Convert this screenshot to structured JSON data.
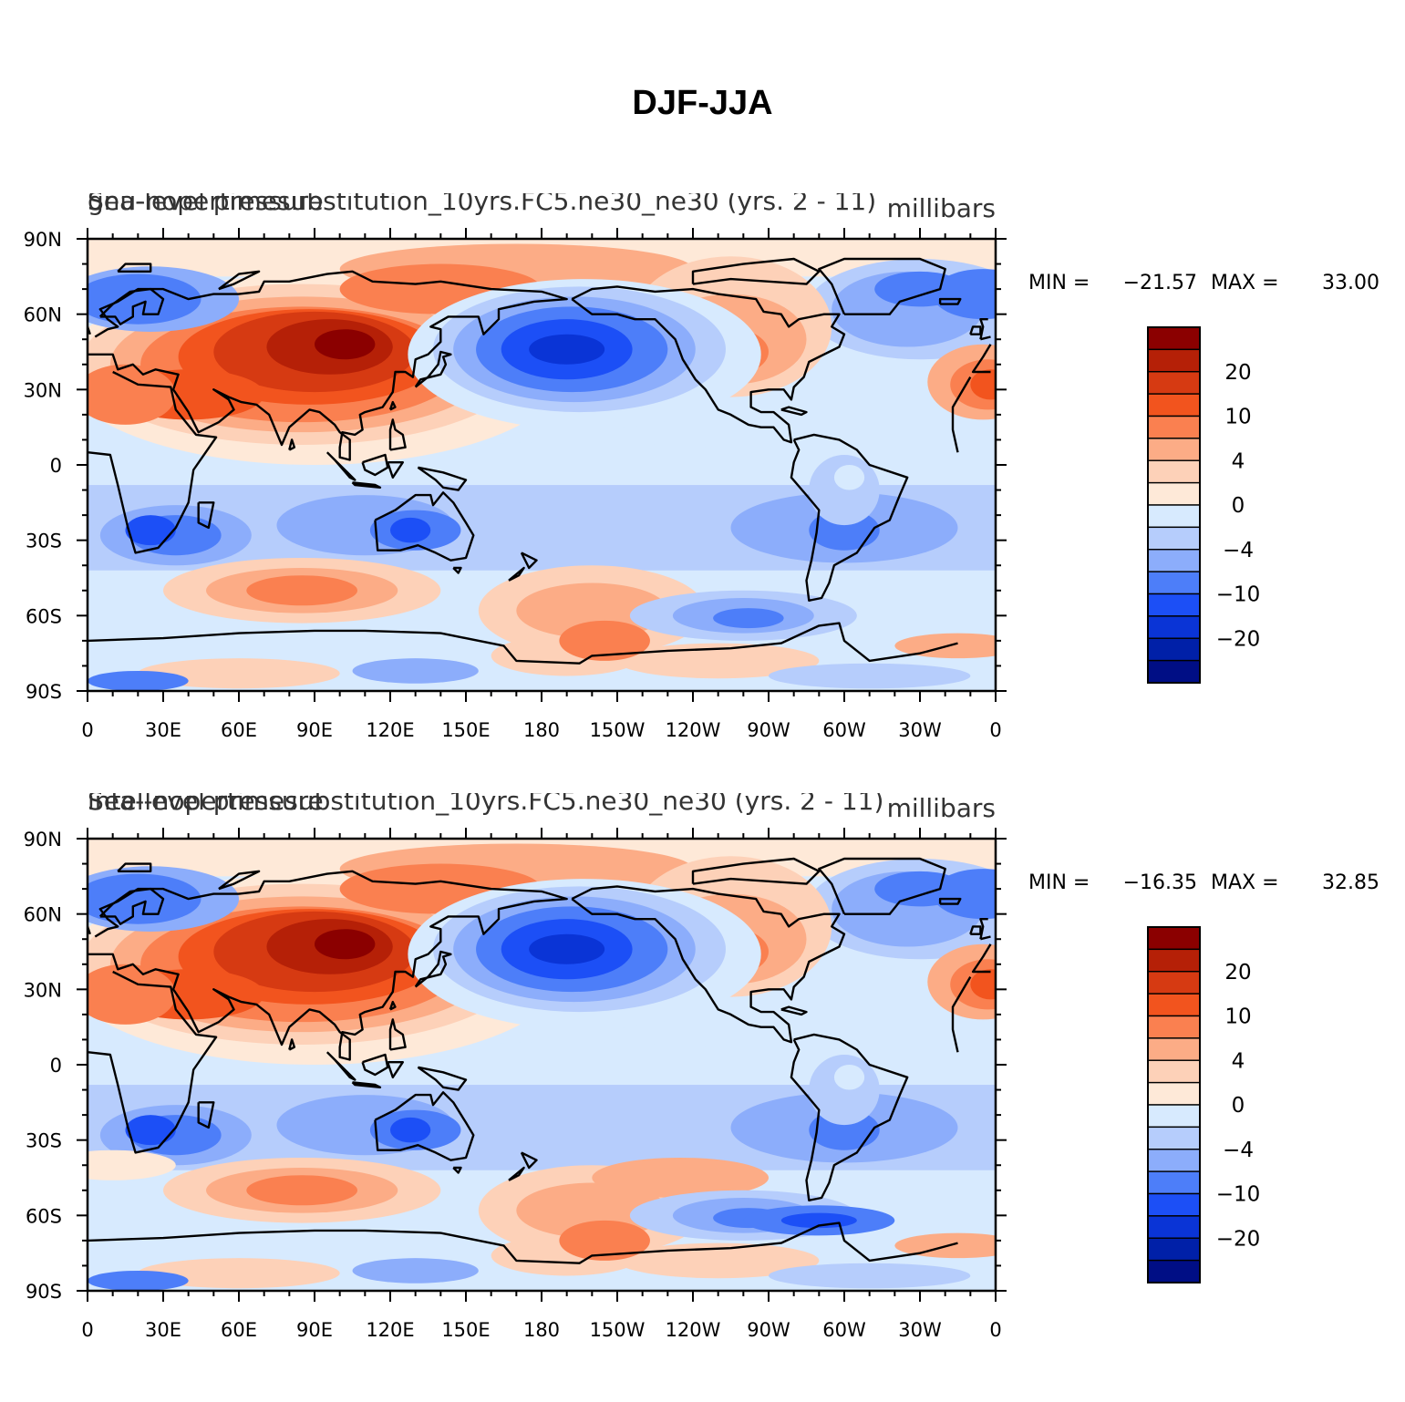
{
  "title": "DJF-JJA",
  "palette": [
    "#8b0000",
    "#b52007",
    "#d63a12",
    "#f2541e",
    "#fa8050",
    "#fcac86",
    "#fdd1b8",
    "#fee9d8",
    "#d7eafe",
    "#b6cdfc",
    "#8cadfb",
    "#4d7ef9",
    "#1c4ff6",
    "#0a34d6",
    "#0020a8",
    "#000e85"
  ],
  "colorbar": {
    "tick_labels": [
      "20",
      "10",
      "4",
      "0",
      "−4",
      "−10",
      "−20"
    ]
  },
  "axes": {
    "lat_labels": [
      "90N",
      "60N",
      "30N",
      "0",
      "30S",
      "60S",
      "90S"
    ],
    "lon_labels": [
      "0",
      "30E",
      "60E",
      "90E",
      "120E",
      "150E",
      "180",
      "150W",
      "120W",
      "90W",
      "60W",
      "30W",
      "0"
    ]
  },
  "panels": [
    {
      "left_header": "Sea-level pressure",
      "center_header": "gnu-nopertimesubstitution_10yrs.FC5.ne30_ne30 (yrs. 2 - 11)",
      "right_header": "millibars",
      "min_label": "MIN =",
      "min_value": "−21.57",
      "max_label": "MAX =",
      "max_value": "33.00"
    },
    {
      "left_header": "Sea-level pressure",
      "center_header": "intel-nopertimesubstitution_10yrs.FC5.ne30_ne30 (yrs. 2 - 11)",
      "right_header": "millibars",
      "min_label": "MIN =",
      "min_value": "−16.35",
      "max_label": "MAX =",
      "max_value": "32.85"
    }
  ]
}
